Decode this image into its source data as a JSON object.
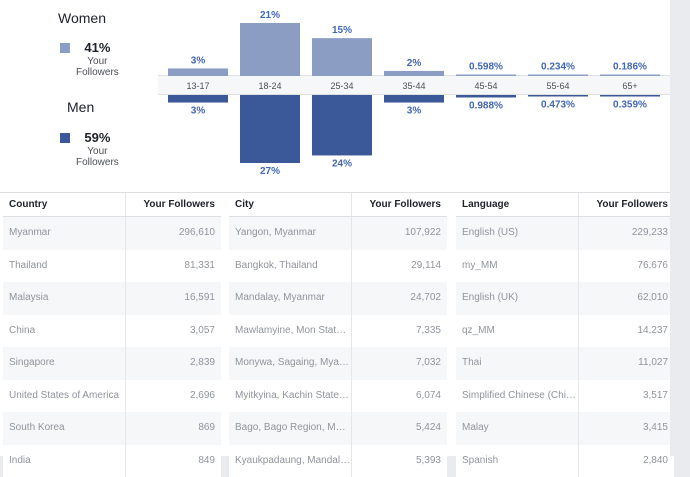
{
  "legend": {
    "women": {
      "title": "Women",
      "percent": "41%",
      "sub1": "Your",
      "sub2": "Followers",
      "color": "#8b9dc3"
    },
    "men": {
      "title": "Men",
      "percent": "59%",
      "sub1": "Your",
      "sub2": "Followers",
      "color": "#3b5998"
    }
  },
  "chart_data": {
    "type": "bar",
    "categories": [
      "13-17",
      "18-24",
      "25-34",
      "35-44",
      "45-54",
      "55-64",
      "65+"
    ],
    "series": [
      {
        "name": "Women",
        "values": [
          3,
          21,
          15,
          2,
          0.598,
          0.234,
          0.186
        ],
        "labels": [
          "3%",
          "21%",
          "15%",
          "2%",
          "0.598%",
          "0.234%",
          "0.186%"
        ],
        "color": "#8b9dc3"
      },
      {
        "name": "Men",
        "values": [
          3,
          27,
          24,
          3,
          0.988,
          0.473,
          0.359
        ],
        "labels": [
          "3%",
          "27%",
          "24%",
          "3%",
          "0.988%",
          "0.473%",
          "0.359%"
        ],
        "color": "#3b5998"
      }
    ]
  },
  "tables": [
    {
      "header_name": "Country",
      "header_value": "Your Followers",
      "rows": [
        {
          "name": "Myanmar",
          "value": "296,610"
        },
        {
          "name": "Thailand",
          "value": "81,331"
        },
        {
          "name": "Malaysia",
          "value": "16,591"
        },
        {
          "name": "China",
          "value": "3,057"
        },
        {
          "name": "Singapore",
          "value": "2,839"
        },
        {
          "name": "United States of America",
          "value": "2,696"
        },
        {
          "name": "South Korea",
          "value": "869"
        },
        {
          "name": "India",
          "value": "849"
        }
      ]
    },
    {
      "header_name": "City",
      "header_value": "Your Followers",
      "rows": [
        {
          "name": "Yangon, Myanmar",
          "value": "107,922"
        },
        {
          "name": "Bangkok, Thailand",
          "value": "29,114"
        },
        {
          "name": "Mandalay, Myanmar",
          "value": "24,702"
        },
        {
          "name": "Mawlamyine, Mon Stat…",
          "value": "7,335"
        },
        {
          "name": "Monywa, Sagaing, Mya…",
          "value": "7,032"
        },
        {
          "name": "Myitkyina, Kachin State…",
          "value": "6,074"
        },
        {
          "name": "Bago, Bago Region, M…",
          "value": "5,424"
        },
        {
          "name": "Kyaukpadaung, Mandal…",
          "value": "5,393"
        }
      ]
    },
    {
      "header_name": "Language",
      "header_value": "Your Followers",
      "rows": [
        {
          "name": "English (US)",
          "value": "229,233"
        },
        {
          "name": "my_MM",
          "value": "76,676"
        },
        {
          "name": "English (UK)",
          "value": "62,010"
        },
        {
          "name": "qz_MM",
          "value": "14,237"
        },
        {
          "name": "Thai",
          "value": "11,027"
        },
        {
          "name": "Simplified Chinese (Chi…",
          "value": "3,517"
        },
        {
          "name": "Malay",
          "value": "3,415"
        },
        {
          "name": "Spanish",
          "value": "2,840"
        }
      ]
    }
  ]
}
